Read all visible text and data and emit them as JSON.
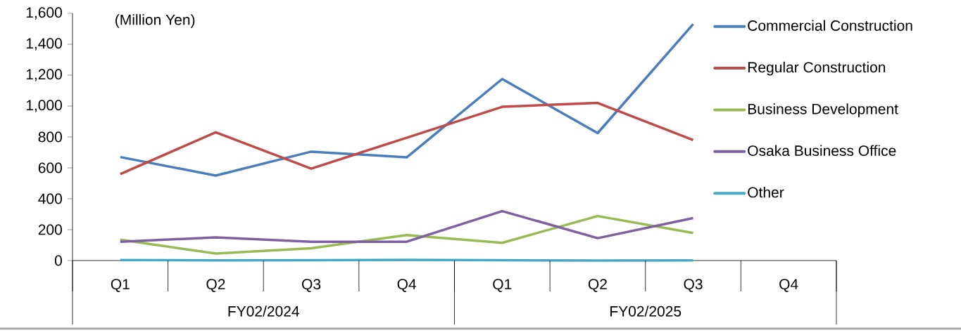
{
  "chart_data": {
    "type": "line",
    "ylabel": "(Million Yen)",
    "categories": [
      "Q1",
      "Q2",
      "Q3",
      "Q4",
      "Q1",
      "Q2",
      "Q3",
      "Q4"
    ],
    "series": [
      {
        "name": "Commercial Construction",
        "color": "#4a7ebb",
        "values": [
          670,
          550,
          705,
          668,
          1175,
          825,
          1530,
          null
        ]
      },
      {
        "name": "Regular Construction",
        "color": "#be4b48",
        "values": [
          560,
          830,
          595,
          795,
          995,
          1020,
          780,
          null
        ]
      },
      {
        "name": "Business Development",
        "color": "#98b954",
        "values": [
          135,
          45,
          80,
          165,
          115,
          288,
          178,
          null
        ]
      },
      {
        "name": "Osaka Business Office",
        "color": "#7d60a0",
        "values": [
          122,
          150,
          122,
          122,
          320,
          145,
          275,
          null
        ]
      },
      {
        "name": "Other",
        "color": "#46aac5",
        "values": [
          3,
          1,
          2,
          4,
          2,
          0,
          1,
          null
        ]
      }
    ],
    "ylim": [
      0,
      1600
    ],
    "yticks": [
      0,
      200,
      400,
      600,
      800,
      {
        "value": 1000,
        "label": "1,000"
      },
      {
        "value": 1200,
        "label": "1,200"
      },
      {
        "value": 1400,
        "label": "1,400"
      },
      {
        "value": 1600,
        "label": "1,600"
      }
    ],
    "annotations": [
      "FY02/2024",
      "FY02/2025"
    ],
    "legend": "top right",
    "marker": "none",
    "line_style": "solid"
  }
}
